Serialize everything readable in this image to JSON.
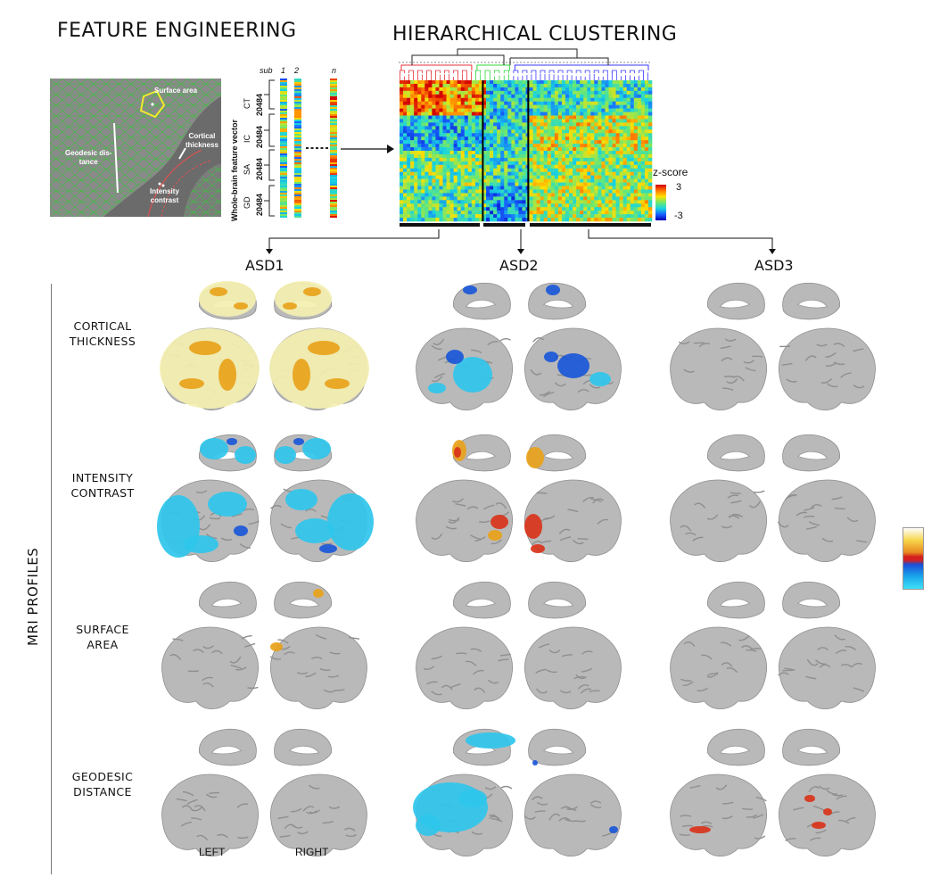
{
  "titles": {
    "feature_engineering": "FEATURE ENGINEERING",
    "hierarchical_clustering": "HIERARCHICAL CLUSTERING"
  },
  "surface_panel": {
    "surface_area": "Surface area",
    "cortical_thickness": [
      "Cortical",
      "thickness"
    ],
    "geodesic_distance": [
      "Geodesic dis-",
      "tance"
    ],
    "intensity_contrast": [
      "Intensity",
      "contrast"
    ]
  },
  "feature_vector": {
    "axis_label": "Whole-brain feature vector",
    "sub_label": "sub",
    "subjects": [
      "1",
      "2",
      "n"
    ],
    "blocks": [
      {
        "name": "CT",
        "size": "20484"
      },
      {
        "name": "IC",
        "size": "20484"
      },
      {
        "name": "SA",
        "size": "20484"
      },
      {
        "name": "GD",
        "size": "20484"
      }
    ]
  },
  "heatmap": {
    "legend_title": "z-score",
    "legend_max": "3",
    "legend_min": "-3",
    "cluster_colors": [
      "#e8323a",
      "#2fd83a",
      "#3a3aff"
    ],
    "cluster_fractions": [
      0.3,
      0.15,
      0.55
    ]
  },
  "clusters": [
    "ASD1",
    "ASD2",
    "ASD3"
  ],
  "side_label": "MRI PROFILES",
  "rows": [
    {
      "label": [
        "CORTICAL",
        "THICKNESS"
      ]
    },
    {
      "label": [
        "INTENSITY",
        "CONTRAST"
      ]
    },
    {
      "label": [
        "SURFACE",
        "AREA"
      ]
    },
    {
      "label": [
        "GEODESIC",
        "DISTANCE"
      ]
    }
  ],
  "hemisphere_labels": {
    "left": "LEFT",
    "right": "RIGHT"
  },
  "colors": {
    "brain": "#b9b9b9",
    "positive_low": "#f3efb0",
    "positive_high": "#e8a21a",
    "negative": "#2fc6ec",
    "negative_deep": "#1a57d8",
    "red_blob": "#d9331a"
  }
}
